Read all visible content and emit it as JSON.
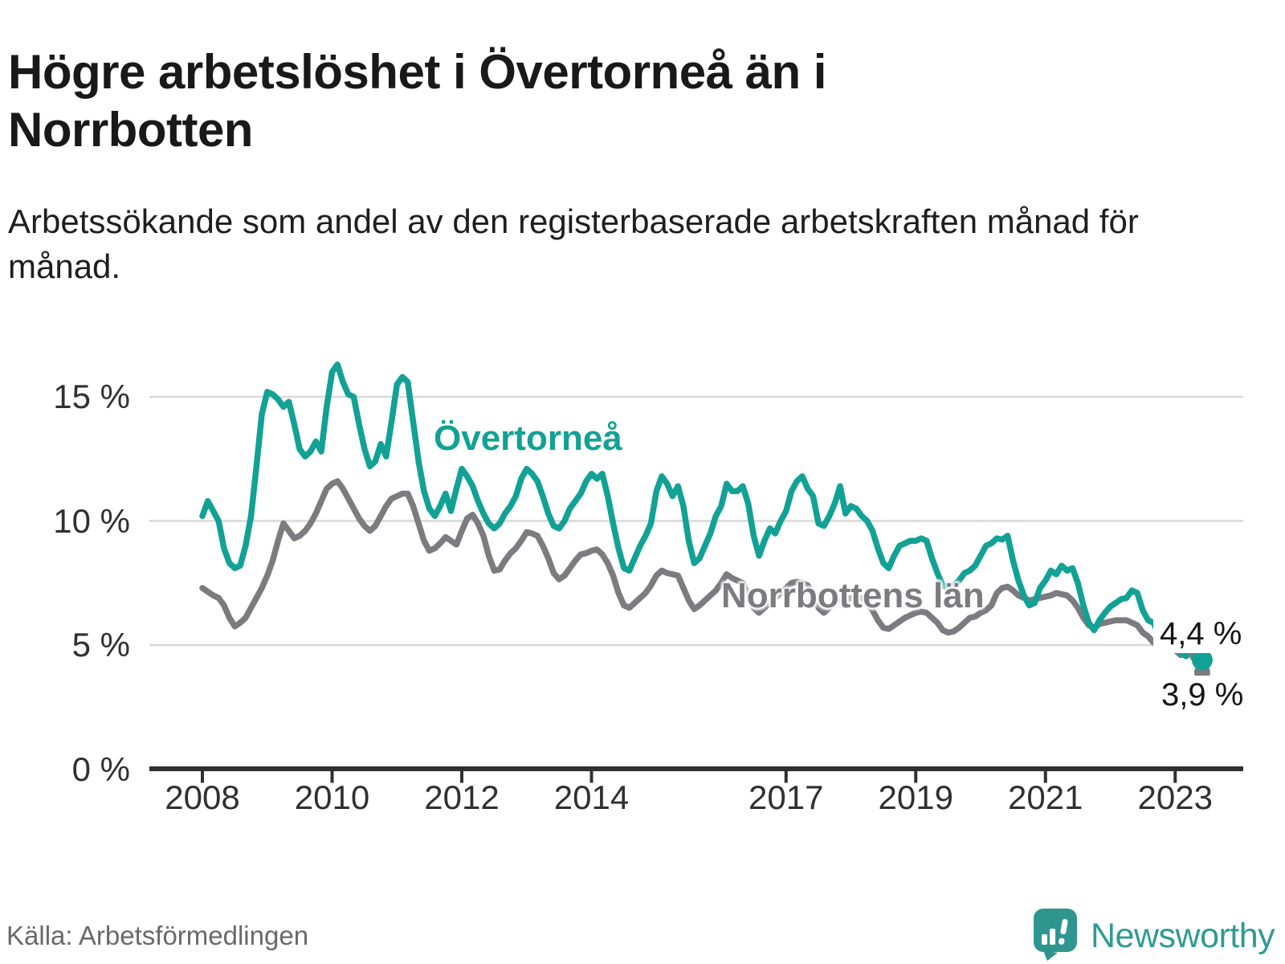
{
  "title": "Högre arbetslöshet i Övertorneå än i Norrbotten",
  "subtitle": "Arbetssökande som andel av den registerbaserade arbetskraften månad för månad.",
  "source": "Källa: Arbetsförmedlingen",
  "brand": {
    "name": "Newsworthy"
  },
  "colors": {
    "overtornea": "#12a195",
    "norrbotten": "#7b7b80",
    "gridline": "#d9d9d9",
    "axis": "#303030",
    "end_label_text": "#141414",
    "brand_teal": "#2f9a93"
  },
  "chart_data": {
    "type": "line",
    "title": "Högre arbetslöshet i Övertorneå än i Norrbotten",
    "xlabel": "",
    "ylabel": "Arbetssökande som andel av den registerbaserade arbetskraften",
    "frequency": "monthly",
    "x_start": "2008-01",
    "x_end": "2023-06",
    "x_tick_years": [
      2008,
      2010,
      2012,
      2014,
      2017,
      2019,
      2021,
      2023
    ],
    "y_axis": {
      "ylim": [
        0,
        16.8
      ],
      "grid": true,
      "ticks": [
        {
          "value": 0,
          "label": "0 %"
        },
        {
          "value": 5,
          "label": "5 %"
        },
        {
          "value": 10,
          "label": "10 %"
        },
        {
          "value": 15,
          "label": "15 %"
        }
      ]
    },
    "legend_position": "inline-labels",
    "series": [
      {
        "name": "Övertorneå",
        "color": "#12a195",
        "end_label": "4,4 %",
        "end_value": 4.4,
        "values": [
          10.2,
          10.8,
          10.4,
          10.0,
          8.9,
          8.3,
          8.1,
          8.2,
          9.0,
          10.2,
          12.2,
          14.3,
          15.2,
          15.1,
          14.9,
          14.6,
          14.8,
          13.9,
          12.9,
          12.6,
          12.8,
          13.2,
          12.8,
          14.6,
          16.0,
          16.3,
          15.6,
          15.1,
          15.0,
          13.9,
          12.9,
          12.2,
          12.4,
          13.1,
          12.6,
          14.0,
          15.5,
          15.8,
          15.6,
          14.0,
          12.4,
          11.2,
          10.5,
          10.2,
          10.6,
          11.1,
          10.4,
          11.3,
          12.1,
          11.8,
          11.4,
          10.8,
          10.3,
          9.9,
          9.7,
          9.9,
          10.3,
          10.6,
          11.0,
          11.7,
          12.1,
          11.9,
          11.6,
          11.0,
          10.3,
          9.8,
          9.7,
          10.0,
          10.5,
          10.8,
          11.1,
          11.6,
          11.9,
          11.7,
          11.9,
          11.0,
          9.9,
          8.9,
          8.1,
          8.0,
          8.5,
          9.0,
          9.4,
          9.9,
          11.2,
          11.8,
          11.5,
          11.0,
          11.4,
          10.6,
          9.2,
          8.3,
          8.5,
          9.0,
          9.5,
          10.2,
          10.6,
          11.5,
          11.2,
          11.2,
          11.4,
          10.7,
          9.4,
          8.6,
          9.2,
          9.7,
          9.5,
          10.0,
          10.4,
          11.2,
          11.6,
          11.8,
          11.3,
          11.0,
          9.9,
          9.8,
          10.2,
          10.7,
          11.4,
          10.3,
          10.6,
          10.5,
          10.2,
          10.0,
          9.6,
          8.9,
          8.3,
          8.1,
          8.6,
          9.0,
          9.1,
          9.2,
          9.2,
          9.3,
          9.2,
          8.5,
          7.9,
          7.4,
          7.3,
          7.4,
          7.6,
          7.9,
          8.0,
          8.2,
          8.6,
          9.0,
          9.1,
          9.3,
          9.25,
          9.4,
          8.4,
          7.6,
          7.0,
          6.6,
          6.7,
          7.3,
          7.6,
          8.0,
          7.85,
          8.2,
          8.0,
          8.1,
          7.5,
          6.6,
          5.9,
          5.6,
          6.0,
          6.3,
          6.55,
          6.7,
          6.85,
          6.9,
          7.2,
          7.1,
          6.4,
          6.0,
          5.9,
          5.4,
          5.1,
          5.05,
          5.15,
          4.7,
          4.55,
          5.1,
          4.6,
          4.4
        ]
      },
      {
        "name": "Norrbottens län",
        "color": "#7b7b80",
        "end_label": "3,9 %",
        "end_value": 3.9,
        "values": [
          7.3,
          7.15,
          7.0,
          6.9,
          6.6,
          6.1,
          5.75,
          5.9,
          6.1,
          6.5,
          6.9,
          7.3,
          7.8,
          8.4,
          9.2,
          9.9,
          9.6,
          9.3,
          9.4,
          9.6,
          9.9,
          10.3,
          10.8,
          11.3,
          11.5,
          11.6,
          11.3,
          10.9,
          10.5,
          10.1,
          9.8,
          9.6,
          9.8,
          10.2,
          10.6,
          10.9,
          11.0,
          11.1,
          11.1,
          10.6,
          9.9,
          9.2,
          8.8,
          8.9,
          9.1,
          9.35,
          9.2,
          9.05,
          9.6,
          10.1,
          10.25,
          9.9,
          9.4,
          8.6,
          8.0,
          8.05,
          8.4,
          8.7,
          8.9,
          9.2,
          9.55,
          9.5,
          9.4,
          9.0,
          8.5,
          7.9,
          7.65,
          7.8,
          8.1,
          8.4,
          8.65,
          8.7,
          8.8,
          8.85,
          8.65,
          8.3,
          7.8,
          7.1,
          6.6,
          6.5,
          6.7,
          6.9,
          7.1,
          7.4,
          7.8,
          8.0,
          7.9,
          7.85,
          7.8,
          7.3,
          6.8,
          6.45,
          6.6,
          6.8,
          7.0,
          7.2,
          7.5,
          7.85,
          7.7,
          7.6,
          7.5,
          7.0,
          6.5,
          6.3,
          6.5,
          6.7,
          6.9,
          7.1,
          7.3,
          7.5,
          7.55,
          7.5,
          7.4,
          7.0,
          6.5,
          6.3,
          6.5,
          6.7,
          6.9,
          6.8,
          6.9,
          6.95,
          6.9,
          6.7,
          6.4,
          6.0,
          5.7,
          5.65,
          5.8,
          5.95,
          6.1,
          6.2,
          6.3,
          6.35,
          6.3,
          6.1,
          5.9,
          5.6,
          5.5,
          5.55,
          5.7,
          5.9,
          6.1,
          6.15,
          6.3,
          6.4,
          6.6,
          7.1,
          7.3,
          7.35,
          7.2,
          7.0,
          6.9,
          6.8,
          6.85,
          6.9,
          6.95,
          7.0,
          7.1,
          7.05,
          7.0,
          6.8,
          6.5,
          6.1,
          5.8,
          5.7,
          5.85,
          5.9,
          5.95,
          6.0,
          6.0,
          6.0,
          5.9,
          5.8,
          5.5,
          5.35,
          5.1,
          5.0,
          4.85,
          4.8,
          4.8,
          4.6,
          4.65,
          4.6,
          4.3,
          3.9
        ]
      }
    ]
  }
}
